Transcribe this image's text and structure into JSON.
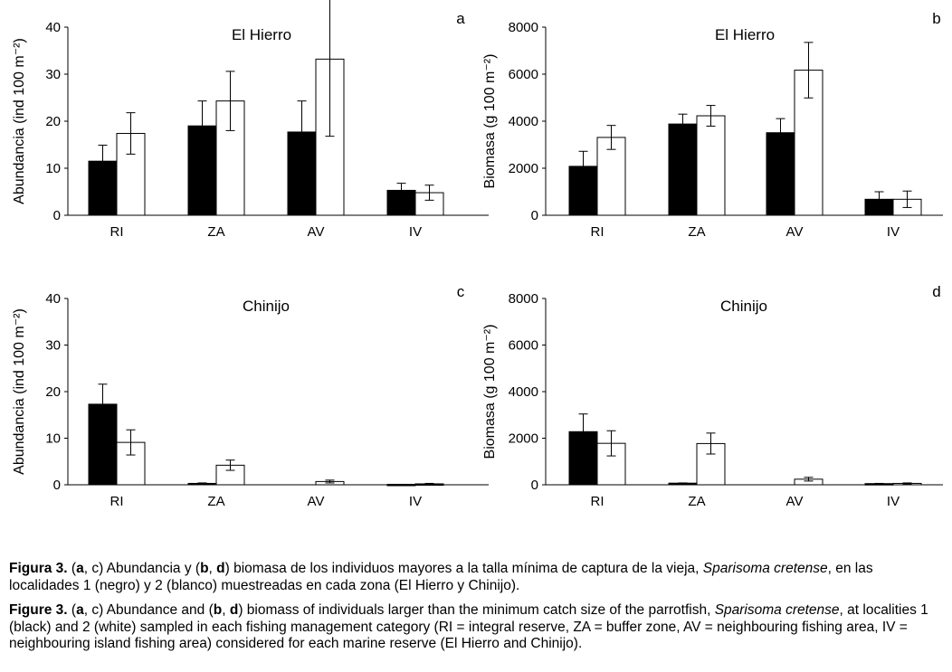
{
  "chart_data": [
    {
      "type": "bar",
      "panel_letter": "a",
      "title": "El Hierro",
      "ylabel": "Abundancia (ind 100 m⁻²)",
      "xlabel": "",
      "categories": [
        "RI",
        "ZA",
        "AV",
        "IV"
      ],
      "ylim": [
        0,
        40
      ],
      "yticks": [
        0,
        10,
        20,
        30,
        40
      ],
      "error_bars": true,
      "series": [
        {
          "name": "1 (negro)",
          "color": "#000000",
          "values": [
            11.5,
            19.0,
            17.7,
            5.3
          ],
          "errors": [
            3.4,
            5.3,
            6.6,
            1.5
          ]
        },
        {
          "name": "2 (blanco)",
          "color": "#ffffff",
          "values": [
            17.4,
            24.3,
            33.2,
            4.8
          ],
          "errors": [
            4.4,
            6.3,
            16.4,
            1.6
          ]
        }
      ]
    },
    {
      "type": "bar",
      "panel_letter": "b",
      "title": "El Hierro",
      "ylabel": "Biomasa (g 100 m⁻²)",
      "xlabel": "",
      "categories": [
        "RI",
        "ZA",
        "AV",
        "IV"
      ],
      "ylim": [
        0,
        8000
      ],
      "yticks": [
        0,
        2000,
        4000,
        6000,
        8000
      ],
      "error_bars": true,
      "series": [
        {
          "name": "1 (negro)",
          "color": "#000000",
          "values": [
            2080,
            3880,
            3510,
            680
          ],
          "errors": [
            640,
            420,
            600,
            320
          ]
        },
        {
          "name": "2 (blanco)",
          "color": "#ffffff",
          "values": [
            3310,
            4230,
            6170,
            680
          ],
          "errors": [
            510,
            440,
            1180,
            350
          ]
        }
      ]
    },
    {
      "type": "bar",
      "panel_letter": "c",
      "title": "Chinijo",
      "ylabel": "Abundancia (ind 100 m⁻²)",
      "xlabel": "",
      "categories": [
        "RI",
        "ZA",
        "AV",
        "IV"
      ],
      "ylim": [
        0,
        40
      ],
      "yticks": [
        0,
        10,
        20,
        30,
        40
      ],
      "error_bars": true,
      "series": [
        {
          "name": "1 (negro)",
          "color": "#000000",
          "values": [
            17.3,
            0.3,
            0.0,
            0.1
          ],
          "errors": [
            4.3,
            0.1,
            0.0,
            0.0
          ]
        },
        {
          "name": "2 (blanco)",
          "color": "#ffffff",
          "values": [
            9.1,
            4.2,
            0.7,
            0.2
          ],
          "errors": [
            2.7,
            1.1,
            0.3,
            0.1
          ]
        }
      ]
    },
    {
      "type": "bar",
      "panel_letter": "d",
      "title": "Chinijo",
      "ylabel": "Biomasa (g 100 m⁻²)",
      "xlabel": "",
      "categories": [
        "RI",
        "ZA",
        "AV",
        "IV"
      ],
      "ylim": [
        0,
        8000
      ],
      "yticks": [
        0,
        2000,
        4000,
        6000,
        8000
      ],
      "error_bars": true,
      "series": [
        {
          "name": "1 (negro)",
          "color": "#000000",
          "values": [
            2280,
            70,
            0,
            50
          ],
          "errors": [
            760,
            10,
            0,
            10
          ]
        },
        {
          "name": "2 (blanco)",
          "color": "#ffffff",
          "values": [
            1780,
            1770,
            240,
            60
          ],
          "errors": [
            540,
            450,
            80,
            20
          ]
        }
      ]
    }
  ],
  "caption": {
    "es": {
      "label": "Figura 3.",
      "t1": " (",
      "b1": "a",
      "t2": ", c) Abundancia y (",
      "b2": "b",
      "t3": ", ",
      "b3": "d",
      "t4": ") biomasa de los individuos mayores a la talla mínima de captura de la vieja, ",
      "species": "Sparisoma cretense",
      "t5": ", en las localidades 1 (negro) y 2 (blanco) muestreadas en cada zona (El Hierro y Chinijo)."
    },
    "en": {
      "label": "Figure 3.",
      "t1": " (",
      "b1": "a",
      "t2": ", c) Abundance and (",
      "b2": "b",
      "t3": ", ",
      "b3": "d",
      "t4": ") biomass of individuals larger than the minimum catch size of the parrotfish, ",
      "species": "Sparisoma cretense",
      "t5": ", at localities 1 (black) and 2 (white) sampled in each fishing management category (RI = integral reserve, ZA = buffer zone, AV = neighbouring fishing area, IV = neighbouring island fishing area) considered for each marine reserve (El Hierro and Chinijo)."
    }
  }
}
